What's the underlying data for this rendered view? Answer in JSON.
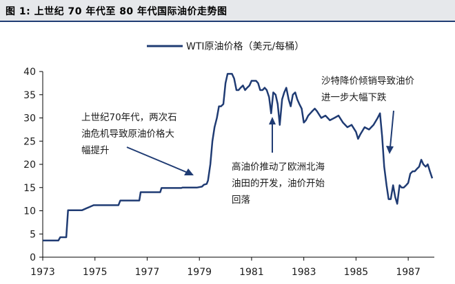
{
  "figure_title": "图 1:  上世纪 70 年代至 80 年代国际油价走势图",
  "colors": {
    "series": "#1f3b73",
    "title_bg": "#e6e8eb",
    "arrow": "#1f3b73"
  },
  "chart_data": {
    "type": "line",
    "title": "图 1:  上世纪 70 年代至 80 年代国际油价走势图",
    "xlabel": "",
    "ylabel": "",
    "xlim": [
      1973,
      1988
    ],
    "ylim": [
      0,
      40
    ],
    "x_ticks": [
      "1973",
      "1975",
      "1977",
      "1979",
      "1981",
      "1983",
      "1985",
      "1987"
    ],
    "y_ticks": [
      "0",
      "5",
      "10",
      "15",
      "20",
      "25",
      "30",
      "35",
      "40"
    ],
    "grid": false,
    "legend_position": "top-center",
    "series": [
      {
        "name": "WTI原油价格（美元/每桶）",
        "x": [
          1973.0,
          1973.6,
          1973.67,
          1973.9,
          1973.97,
          1974.05,
          1974.5,
          1974.95,
          1974.97,
          1975.3,
          1975.9,
          1975.97,
          1976.4,
          1976.7,
          1976.75,
          1977.1,
          1977.5,
          1977.55,
          1978.0,
          1978.3,
          1978.35,
          1978.6,
          1978.9,
          1979.1,
          1979.17,
          1979.28,
          1979.33,
          1979.42,
          1979.5,
          1979.58,
          1979.67,
          1979.75,
          1979.83,
          1979.92,
          1980.0,
          1980.08,
          1980.17,
          1980.25,
          1980.33,
          1980.42,
          1980.5,
          1980.58,
          1980.67,
          1980.75,
          1980.83,
          1980.92,
          1981.0,
          1981.08,
          1981.17,
          1981.25,
          1981.33,
          1981.42,
          1981.5,
          1981.58,
          1981.67,
          1981.75,
          1981.83,
          1981.92,
          1982.0,
          1982.08,
          1982.17,
          1982.25,
          1982.33,
          1982.42,
          1982.5,
          1982.58,
          1982.67,
          1982.75,
          1982.83,
          1982.92,
          1983.0,
          1983.08,
          1983.17,
          1983.25,
          1983.33,
          1983.42,
          1983.5,
          1983.67,
          1983.83,
          1984.0,
          1984.17,
          1984.33,
          1984.5,
          1984.67,
          1984.83,
          1985.0,
          1985.08,
          1985.17,
          1985.33,
          1985.5,
          1985.67,
          1985.83,
          1985.92,
          1986.0,
          1986.08,
          1986.17,
          1986.25,
          1986.33,
          1986.42,
          1986.5,
          1986.58,
          1986.67,
          1986.75,
          1986.83,
          1986.92,
          1987.0,
          1987.08,
          1987.17,
          1987.25,
          1987.33,
          1987.42,
          1987.5,
          1987.58,
          1987.67,
          1987.75,
          1987.83,
          1987.92
        ],
        "y": [
          3.6,
          3.6,
          4.3,
          4.3,
          10.1,
          10.1,
          10.1,
          11.2,
          11.2,
          11.2,
          11.2,
          12.2,
          12.2,
          12.2,
          14.0,
          14.0,
          14.0,
          14.9,
          14.9,
          14.9,
          15.0,
          15.0,
          15.0,
          15.2,
          15.6,
          15.8,
          16.5,
          20.0,
          25.0,
          28.0,
          30.0,
          32.5,
          32.5,
          33.0,
          37.5,
          39.5,
          39.5,
          39.5,
          38.5,
          36.0,
          36.0,
          36.5,
          37.0,
          36.0,
          36.5,
          37.0,
          38.0,
          38.0,
          38.0,
          37.5,
          36.0,
          36.0,
          36.5,
          36.0,
          34.5,
          31.0,
          35.5,
          35.0,
          33.0,
          28.5,
          34.0,
          35.5,
          36.5,
          34.0,
          32.5,
          35.0,
          35.5,
          34.0,
          33.0,
          32.0,
          29.0,
          29.5,
          30.5,
          31.0,
          31.5,
          32.0,
          31.5,
          30.0,
          30.5,
          29.5,
          30.0,
          30.5,
          29.0,
          28.0,
          28.5,
          27.0,
          25.5,
          26.5,
          28.0,
          27.5,
          28.5,
          30.0,
          31.0,
          26.0,
          19.5,
          15.5,
          12.5,
          12.5,
          15.5,
          13.0,
          11.5,
          15.5,
          15.0,
          15.0,
          15.5,
          16.0,
          18.0,
          18.5,
          18.5,
          19.0,
          19.5,
          21.0,
          20.0,
          19.5,
          20.0,
          18.5,
          17.0
        ]
      }
    ]
  },
  "annotations": {
    "note1": [
      "上世纪70年代，两次石",
      "油危机导致原油价格大",
      "幅提升"
    ],
    "note2": [
      "高油价推动了欧洲北海",
      "油田的开发，油价开始",
      "回落"
    ],
    "note3": [
      "沙特降价倾销导致油价",
      "进一步大幅下跌"
    ]
  }
}
